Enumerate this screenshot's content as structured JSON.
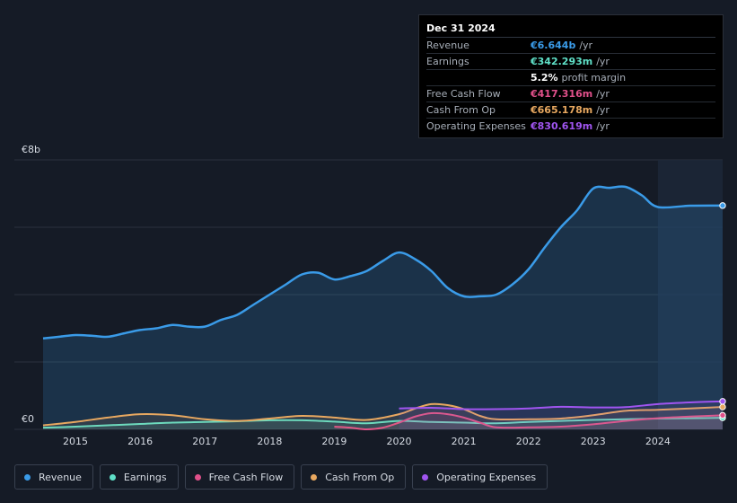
{
  "tooltip": {
    "date": "Dec 31 2024",
    "rows": [
      {
        "label": "Revenue",
        "value": "€6.644b",
        "unit": "/yr",
        "color": "#3a9be8"
      },
      {
        "label": "Earnings",
        "value": "€342.293m",
        "unit": "/yr",
        "color": "#5fe0c8"
      },
      {
        "label": "",
        "value": "5.2%",
        "unit": "profit margin",
        "color": "#ffffff"
      },
      {
        "label": "Free Cash Flow",
        "value": "€417.316m",
        "unit": "/yr",
        "color": "#e0508a"
      },
      {
        "label": "Cash From Op",
        "value": "€665.178m",
        "unit": "/yr",
        "color": "#e8a860"
      },
      {
        "label": "Operating Expenses",
        "value": "€830.619m",
        "unit": "/yr",
        "color": "#a055f0"
      }
    ]
  },
  "chart_data": {
    "type": "area",
    "currency_unit": "€b",
    "y_top_label": "€8b",
    "y_bottom_label": "€0",
    "ylim": [
      0,
      8
    ],
    "xlim": [
      2014.5,
      2025.0
    ],
    "x_ticks": [
      "2015",
      "2016",
      "2017",
      "2018",
      "2019",
      "2020",
      "2021",
      "2022",
      "2023",
      "2024"
    ],
    "forecast_start": 2024.0,
    "series": [
      {
        "name": "Revenue",
        "color": "#3a9be8",
        "fill": true,
        "x": [
          2014.5,
          2014.75,
          2015.0,
          2015.25,
          2015.5,
          2015.75,
          2016.0,
          2016.25,
          2016.5,
          2016.75,
          2017.0,
          2017.25,
          2017.5,
          2017.75,
          2018.0,
          2018.25,
          2018.5,
          2018.75,
          2019.0,
          2019.25,
          2019.5,
          2019.75,
          2020.0,
          2020.25,
          2020.5,
          2020.75,
          2021.0,
          2021.25,
          2021.5,
          2021.75,
          2022.0,
          2022.25,
          2022.5,
          2022.75,
          2023.0,
          2023.25,
          2023.5,
          2023.75,
          2024.0,
          2024.5,
          2025.0
        ],
        "values": [
          2.7,
          2.75,
          2.8,
          2.78,
          2.75,
          2.85,
          2.95,
          3.0,
          3.1,
          3.05,
          3.05,
          3.25,
          3.4,
          3.7,
          4.0,
          4.3,
          4.6,
          4.65,
          4.45,
          4.55,
          4.7,
          5.0,
          5.25,
          5.05,
          4.7,
          4.2,
          3.95,
          3.95,
          4.0,
          4.3,
          4.75,
          5.4,
          6.0,
          6.5,
          7.15,
          7.17,
          7.2,
          6.95,
          6.6,
          6.64,
          6.644
        ]
      },
      {
        "name": "Earnings",
        "color": "#5fe0c8",
        "fill": false,
        "x": [
          2014.5,
          2015.0,
          2015.5,
          2016.0,
          2016.5,
          2017.0,
          2017.5,
          2018.0,
          2018.5,
          2019.0,
          2019.5,
          2020.0,
          2020.5,
          2021.0,
          2021.5,
          2022.0,
          2022.5,
          2023.0,
          2023.5,
          2024.0,
          2024.5,
          2025.0
        ],
        "values": [
          0.05,
          0.08,
          0.12,
          0.16,
          0.2,
          0.22,
          0.24,
          0.27,
          0.27,
          0.23,
          0.18,
          0.25,
          0.22,
          0.2,
          0.18,
          0.22,
          0.25,
          0.28,
          0.3,
          0.32,
          0.33,
          0.342
        ]
      },
      {
        "name": "Free Cash Flow",
        "color": "#e0508a",
        "fill": false,
        "x": [
          2019.0,
          2019.25,
          2019.5,
          2019.75,
          2020.0,
          2020.25,
          2020.5,
          2020.75,
          2021.0,
          2021.25,
          2021.5,
          2022.0,
          2022.5,
          2023.0,
          2023.5,
          2024.0,
          2024.5,
          2025.0
        ],
        "values": [
          0.08,
          0.05,
          0.0,
          0.05,
          0.2,
          0.38,
          0.48,
          0.45,
          0.35,
          0.2,
          0.06,
          0.06,
          0.08,
          0.15,
          0.25,
          0.33,
          0.38,
          0.417
        ]
      },
      {
        "name": "Cash From Op",
        "color": "#e8a860",
        "fill": false,
        "x": [
          2014.5,
          2015.0,
          2015.5,
          2016.0,
          2016.5,
          2017.0,
          2017.5,
          2018.0,
          2018.5,
          2019.0,
          2019.5,
          2020.0,
          2020.25,
          2020.5,
          2020.75,
          2021.0,
          2021.25,
          2021.5,
          2022.0,
          2022.5,
          2023.0,
          2023.5,
          2024.0,
          2024.5,
          2025.0
        ],
        "values": [
          0.12,
          0.22,
          0.35,
          0.45,
          0.42,
          0.3,
          0.25,
          0.32,
          0.4,
          0.35,
          0.28,
          0.45,
          0.62,
          0.75,
          0.72,
          0.6,
          0.4,
          0.3,
          0.3,
          0.32,
          0.42,
          0.55,
          0.58,
          0.62,
          0.665
        ]
      },
      {
        "name": "Operating Expenses",
        "color": "#a055f0",
        "fill": false,
        "x": [
          2020.0,
          2020.5,
          2021.0,
          2021.5,
          2022.0,
          2022.5,
          2023.0,
          2023.5,
          2024.0,
          2024.5,
          2025.0
        ],
        "values": [
          0.62,
          0.64,
          0.6,
          0.6,
          0.62,
          0.67,
          0.65,
          0.66,
          0.75,
          0.8,
          0.831
        ]
      }
    ]
  },
  "legend": [
    {
      "label": "Revenue",
      "color": "#3a9be8"
    },
    {
      "label": "Earnings",
      "color": "#5fe0c8"
    },
    {
      "label": "Free Cash Flow",
      "color": "#e0508a"
    },
    {
      "label": "Cash From Op",
      "color": "#e8a860"
    },
    {
      "label": "Operating Expenses",
      "color": "#a055f0"
    }
  ]
}
